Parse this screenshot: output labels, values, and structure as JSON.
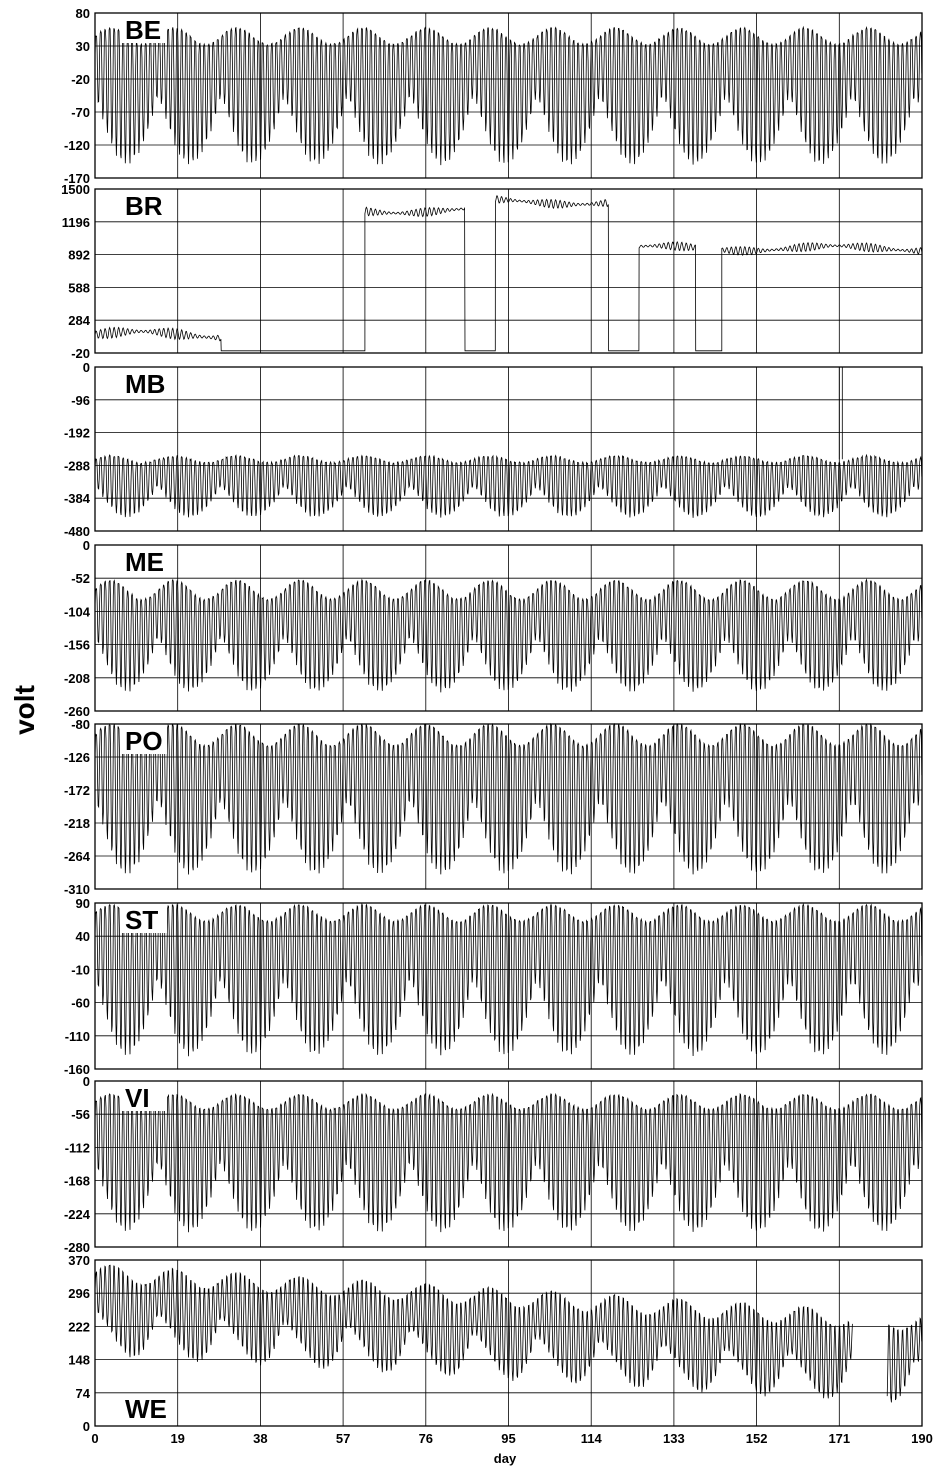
{
  "chart_data": {
    "type": "line",
    "ylabel": "volt",
    "xlabel": "day",
    "xlim": [
      0,
      190
    ],
    "xticks": [
      "0",
      "19",
      "38",
      "57",
      "76",
      "95",
      "114",
      "133",
      "152",
      "171",
      "190"
    ],
    "grid": true,
    "line_color": "#000000",
    "panels": [
      {
        "name": "BE",
        "label_corner": "top-left",
        "ylim": [
          -170,
          80
        ],
        "yticks": [
          "80",
          "30",
          "-20",
          "-70",
          "-120",
          "-170"
        ],
        "baseline": 20,
        "top_env": 45,
        "bottom_env": -150,
        "swing_cycle_days": 14.5,
        "segments": [
          {
            "from": 0,
            "to": 190
          }
        ]
      },
      {
        "name": "BR",
        "label_corner": "top-left",
        "ylim": [
          -20,
          1500
        ],
        "yticks": [
          "1500",
          "1196",
          "892",
          "588",
          "284",
          "-20"
        ],
        "step_levels": [
          {
            "from": 0,
            "to": 29,
            "value": 150,
            "ripple": 100
          },
          {
            "from": 29,
            "to": 62,
            "value": 0,
            "ripple": 0
          },
          {
            "from": 62,
            "to": 85,
            "value": 1300,
            "ripple": 80
          },
          {
            "from": 85,
            "to": 92,
            "value": 0,
            "ripple": 0
          },
          {
            "from": 92,
            "to": 118,
            "value": 1380,
            "ripple": 80
          },
          {
            "from": 118,
            "to": 125,
            "value": 0,
            "ripple": 0
          },
          {
            "from": 125,
            "to": 138,
            "value": 950,
            "ripple": 80
          },
          {
            "from": 138,
            "to": 144,
            "value": 0,
            "ripple": 0
          },
          {
            "from": 144,
            "to": 190,
            "value": 950,
            "ripple": 80
          }
        ]
      },
      {
        "name": "MB",
        "label_corner": "top-left",
        "ylim": [
          -480,
          0
        ],
        "yticks": [
          "0",
          "-96",
          "-192",
          "-288",
          "-384",
          "-480"
        ],
        "baseline": -290,
        "top_env": -270,
        "bottom_env": -440,
        "swing_cycle_days": 14.5,
        "spike": {
          "x": 171,
          "value": 0
        },
        "segments": [
          {
            "from": 0,
            "to": 190
          }
        ]
      },
      {
        "name": "ME",
        "label_corner": "top-left",
        "ylim": [
          -260,
          0
        ],
        "yticks": [
          "0",
          "-52",
          "-104",
          "-156",
          "-208",
          "-260"
        ],
        "baseline": -100,
        "top_env": -70,
        "bottom_env": -230,
        "swing_cycle_days": 14.5,
        "segments": [
          {
            "from": 0,
            "to": 190
          }
        ]
      },
      {
        "name": "PO",
        "label_corner": "top-left",
        "ylim": [
          -310,
          -80
        ],
        "yticks": [
          "-80",
          "-126",
          "-172",
          "-218",
          "-264",
          "-310"
        ],
        "baseline": -125,
        "top_env": -95,
        "bottom_env": -290,
        "swing_cycle_days": 14.5,
        "segments": [
          {
            "from": 0,
            "to": 190
          }
        ]
      },
      {
        "name": "ST",
        "label_corner": "top-left",
        "ylim": [
          -160,
          90
        ],
        "yticks": [
          "90",
          "40",
          "-10",
          "-60",
          "-110",
          "-160"
        ],
        "baseline": 50,
        "top_env": 75,
        "bottom_env": -140,
        "swing_cycle_days": 14.5,
        "segments": [
          {
            "from": 0,
            "to": 190
          }
        ]
      },
      {
        "name": "VI",
        "label_corner": "top-left",
        "ylim": [
          -280,
          0
        ],
        "yticks": [
          "0",
          "-56",
          "-112",
          "-168",
          "-224",
          "-280"
        ],
        "baseline": -60,
        "top_env": -35,
        "bottom_env": -255,
        "swing_cycle_days": 14.5,
        "segments": [
          {
            "from": 0,
            "to": 190
          }
        ]
      },
      {
        "name": "WE",
        "label_corner": "bottom-left",
        "ylim": [
          0,
          370
        ],
        "yticks": [
          "370",
          "296",
          "222",
          "148",
          "74",
          "0"
        ],
        "baseline_start": 340,
        "baseline_end": 230,
        "swing": 150,
        "swing_cycle_days": 14.5,
        "segments": [
          {
            "from": 0,
            "to": 174
          },
          {
            "from": 182,
            "to": 190
          }
        ]
      }
    ]
  }
}
